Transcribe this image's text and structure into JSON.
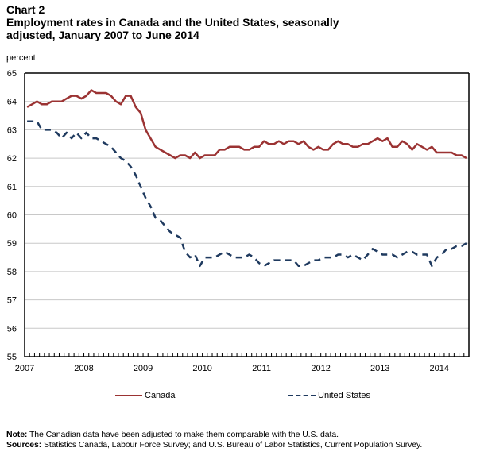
{
  "header": {
    "chart_number": "Chart 2",
    "title_line1": "Employment rates in Canada and the United States, seasonally",
    "title_line2": "adjusted, January 2007 to June 2014"
  },
  "notes": {
    "note_label": "Note:",
    "note_text": " The Canadian data have been adjusted to make them comparable with the U.S. data.",
    "sources_label": "Sources:",
    "sources_text": " Statistics Canada, Labour Force Survey; and U.S. Bureau of Labor Statistics, Current Population Survey."
  },
  "colors": {
    "canada": "#9b3333",
    "united_states": "#1f3a5f",
    "grid": "#c8c8c8",
    "axis": "#000000"
  },
  "chart_data": {
    "type": "line",
    "title": "Employment rates in Canada and the United States, seasonally adjusted, January 2007 to June 2014",
    "xlabel": "",
    "ylabel": "percent",
    "ylim": [
      55,
      65
    ],
    "yticks": [
      55,
      56,
      57,
      58,
      59,
      60,
      61,
      62,
      63,
      64,
      65
    ],
    "xticks": [
      "2007",
      "2008",
      "2009",
      "2010",
      "2011",
      "2012",
      "2013",
      "2014"
    ],
    "x_start": "2007-01",
    "x_end": "2014-06",
    "frequency": "monthly",
    "grid": true,
    "legend_position": "bottom",
    "series": [
      {
        "name": "Canada",
        "style": "solid",
        "values": [
          63.8,
          63.9,
          64.0,
          63.9,
          63.9,
          64.0,
          64.0,
          64.0,
          64.1,
          64.2,
          64.2,
          64.1,
          64.2,
          64.4,
          64.3,
          64.3,
          64.3,
          64.2,
          64.0,
          63.9,
          64.2,
          64.2,
          63.8,
          63.6,
          63.0,
          62.7,
          62.4,
          62.3,
          62.2,
          62.1,
          62.0,
          62.1,
          62.1,
          62.0,
          62.2,
          62.0,
          62.1,
          62.1,
          62.1,
          62.3,
          62.3,
          62.4,
          62.4,
          62.4,
          62.3,
          62.3,
          62.4,
          62.4,
          62.6,
          62.5,
          62.5,
          62.6,
          62.5,
          62.6,
          62.6,
          62.5,
          62.6,
          62.4,
          62.3,
          62.4,
          62.3,
          62.3,
          62.5,
          62.6,
          62.5,
          62.5,
          62.4,
          62.4,
          62.5,
          62.5,
          62.6,
          62.7,
          62.6,
          62.7,
          62.4,
          62.4,
          62.6,
          62.5,
          62.3,
          62.5,
          62.4,
          62.3,
          62.4,
          62.2,
          62.2,
          62.2,
          62.2,
          62.1,
          62.1,
          62.0
        ]
      },
      {
        "name": "United States",
        "style": "dashed",
        "values": [
          63.3,
          63.3,
          63.3,
          63.0,
          63.0,
          63.0,
          62.9,
          62.7,
          62.9,
          62.7,
          62.9,
          62.7,
          62.9,
          62.7,
          62.7,
          62.6,
          62.5,
          62.4,
          62.2,
          62.0,
          61.9,
          61.7,
          61.4,
          61.0,
          60.6,
          60.3,
          59.9,
          59.8,
          59.6,
          59.4,
          59.3,
          59.2,
          58.7,
          58.5,
          58.6,
          58.2,
          58.5,
          58.5,
          58.5,
          58.6,
          58.7,
          58.6,
          58.5,
          58.5,
          58.5,
          58.6,
          58.5,
          58.3,
          58.2,
          58.3,
          58.4,
          58.4,
          58.4,
          58.4,
          58.4,
          58.2,
          58.2,
          58.3,
          58.4,
          58.4,
          58.5,
          58.5,
          58.5,
          58.6,
          58.6,
          58.5,
          58.6,
          58.5,
          58.4,
          58.6,
          58.8,
          58.7,
          58.6,
          58.6,
          58.6,
          58.5,
          58.6,
          58.7,
          58.7,
          58.6,
          58.6,
          58.6,
          58.2,
          58.5,
          58.6,
          58.8,
          58.8,
          58.9,
          58.9,
          59.0
        ]
      }
    ]
  }
}
